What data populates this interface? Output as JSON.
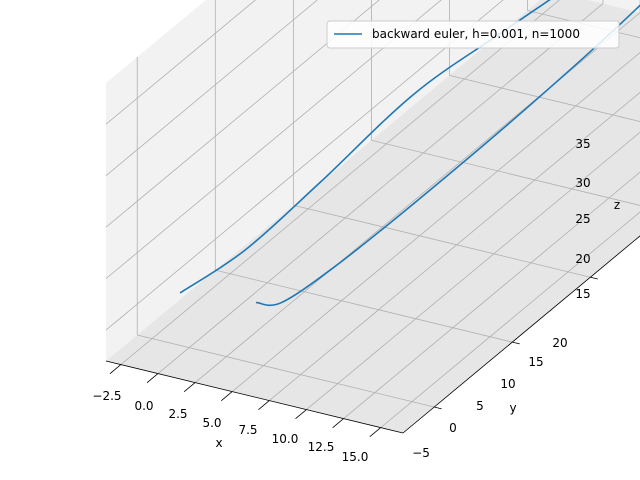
{
  "chart_data": {
    "type": "line",
    "projection": "3d",
    "xlabel": "x",
    "ylabel": "y",
    "zlabel": "z",
    "xlim": [
      -3.5,
      16.5
    ],
    "ylim": [
      -7,
      21.5
    ],
    "zlim": [
      12,
      39
    ],
    "x_ticks": [
      "−2.5",
      "0.0",
      "2.5",
      "5.0",
      "7.5",
      "10.0",
      "12.5",
      "15.0"
    ],
    "y_ticks": [
      "−5",
      "0",
      "5",
      "10",
      "15",
      "20"
    ],
    "z_ticks": [
      "15",
      "20",
      "25",
      "30",
      "35"
    ],
    "grid": true,
    "legend_position": "upper-right",
    "colors": {
      "series": "#1f77b4",
      "pane_light": "#f2f2f2",
      "pane_dark": "#e6e6e6",
      "grid": "#b0b0b0"
    },
    "series": [
      {
        "name": "backward euler, h=0.001, n=1000",
        "x": [
          -3.0,
          -1.4,
          0.4,
          2.4,
          4.2,
          6.2,
          8.4,
          10.6,
          12.6,
          14.4,
          15.6,
          15.8,
          14.9,
          12.9,
          10.4,
          7.9,
          5.8,
          4.3,
          3.6
        ],
        "y": [
          -2.7,
          -0.1,
          3.0,
          7.1,
          10.9,
          14.3,
          17.5,
          20.2,
          21.3,
          20.9,
          19.1,
          17.0,
          14.0,
          10.4,
          6.3,
          1.9,
          -1.2,
          -3.2,
          -4.1
        ],
        "z": [
          13.4,
          14.8,
          18.1,
          22.2,
          23.9,
          25.8,
          28.2,
          30.6,
          32.9,
          35.1,
          36.6,
          35.8,
          33.0,
          28.6,
          24.1,
          20.1,
          17.1,
          15.6,
          16.5
        ]
      }
    ]
  }
}
